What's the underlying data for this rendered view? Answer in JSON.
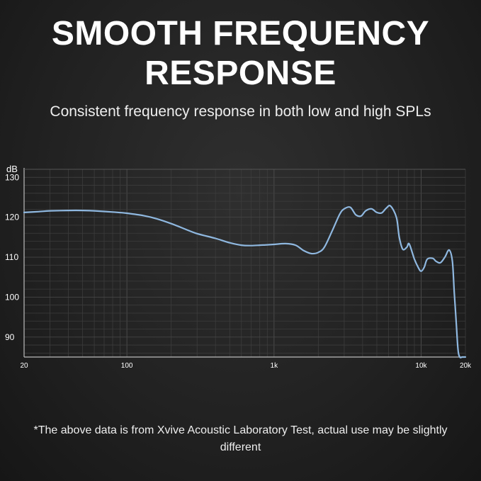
{
  "header": {
    "title_line1": "SMOOTH FREQUENCY",
    "title_line2": "RESPONSE",
    "subtitle": "Consistent frequency response in both low and high SPLs"
  },
  "footnote": "*The above data is from Xvive Acoustic Laboratory Test, actual use may be slightly different",
  "colors": {
    "curve": "#8fb8e0",
    "grid": "#3c3c3c",
    "axis": "#bcbcbc",
    "text": "#ffffff"
  },
  "chart_data": {
    "type": "line",
    "title": "",
    "xlabel": "",
    "ylabel": "dB",
    "x_scale": "log",
    "xlim": [
      20,
      20000
    ],
    "ylim": [
      85,
      132
    ],
    "x_ticks": [
      {
        "value": 20,
        "label": "20"
      },
      {
        "value": 100,
        "label": "100"
      },
      {
        "value": 1000,
        "label": "1k"
      },
      {
        "value": 10000,
        "label": "10k"
      },
      {
        "value": 20000,
        "label": "20k"
      }
    ],
    "y_ticks": [
      {
        "value": 90,
        "label": "90"
      },
      {
        "value": 100,
        "label": "100"
      },
      {
        "value": 110,
        "label": "110"
      },
      {
        "value": 120,
        "label": "120"
      },
      {
        "value": 130,
        "label": "130"
      }
    ],
    "grid": true,
    "series": [
      {
        "x": [
          20,
          25,
          30,
          40,
          50,
          60,
          80,
          100,
          130,
          160,
          200,
          250,
          300,
          400,
          500,
          600,
          700,
          800,
          900,
          1000,
          1200,
          1400,
          1600,
          1800,
          2000,
          2200,
          2500,
          2800,
          3000,
          3300,
          3600,
          3900,
          4200,
          4600,
          5000,
          5400,
          5800,
          6200,
          6800,
          7100,
          7500,
          8000,
          8300,
          9000,
          9600,
          10000,
          10500,
          11000,
          12000,
          12600,
          13500,
          14500,
          15500,
          16300,
          16800,
          17300,
          17800,
          18300,
          19000,
          19600,
          20000
        ],
        "y": [
          121.2,
          121.4,
          121.6,
          121.7,
          121.7,
          121.6,
          121.3,
          121.0,
          120.4,
          119.6,
          118.4,
          117.0,
          115.9,
          114.7,
          113.6,
          113.0,
          112.9,
          113.0,
          113.1,
          113.2,
          113.4,
          113.0,
          111.6,
          110.9,
          111.2,
          112.5,
          116.8,
          120.8,
          122.1,
          122.5,
          120.6,
          120.3,
          121.6,
          122.1,
          121.2,
          121.1,
          122.3,
          122.8,
          119.9,
          115.0,
          112.0,
          112.5,
          113.3,
          109.5,
          107.3,
          106.5,
          107.5,
          109.5,
          109.7,
          109.0,
          108.6,
          110.0,
          111.8,
          109.0,
          101.0,
          94.0,
          87.0,
          85,
          85,
          85,
          85
        ]
      }
    ]
  }
}
